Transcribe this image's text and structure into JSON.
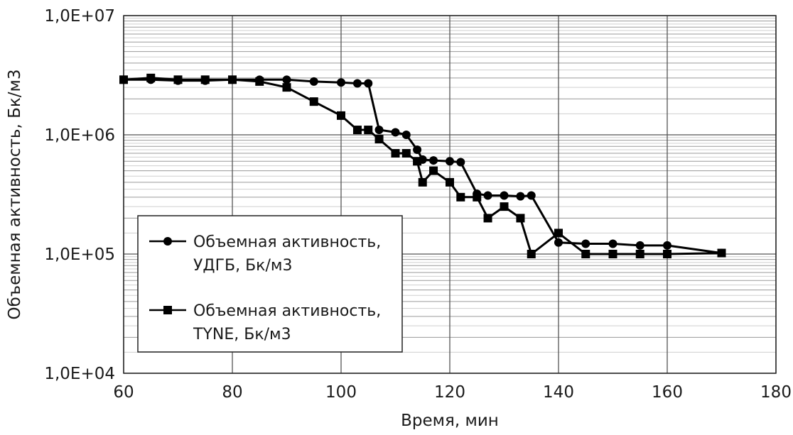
{
  "chart_data": {
    "type": "line",
    "xlabel": "Время, мин",
    "ylabel": "Объемная активность, Бк/м3",
    "xlim": [
      60,
      180
    ],
    "ylim": [
      10000,
      10000000
    ],
    "yscale": "log",
    "grid": true,
    "legend_position": "lower-left",
    "x_ticks": [
      "60",
      "80",
      "100",
      "120",
      "140",
      "160",
      "180"
    ],
    "y_ticks": [
      "1,0E+04",
      "1,0E+05",
      "1,0E+06",
      "1,0E+07"
    ],
    "series": [
      {
        "name_lines": [
          "Объемная активность,",
          "УДГБ, Бк/м3"
        ],
        "marker": "circle",
        "color": "#000000",
        "x": [
          60,
          65,
          70,
          75,
          80,
          85,
          90,
          95,
          100,
          103,
          105,
          107,
          110,
          112,
          114,
          115,
          117,
          120,
          122,
          125,
          127,
          130,
          133,
          135,
          140,
          145,
          150,
          155,
          160,
          170
        ],
        "y": [
          2900000,
          2900000,
          2850000,
          2850000,
          2900000,
          2900000,
          2900000,
          2800000,
          2750000,
          2700000,
          2700000,
          1100000,
          1050000,
          1000000,
          750000,
          620000,
          610000,
          600000,
          590000,
          320000,
          310000,
          310000,
          305000,
          310000,
          125000,
          122000,
          122000,
          118000,
          118000,
          102000
        ]
      },
      {
        "name_lines": [
          "Объемная активность,",
          "TYNE, Бк/м3"
        ],
        "marker": "square",
        "color": "#000000",
        "x": [
          60,
          65,
          70,
          75,
          80,
          85,
          90,
          95,
          100,
          103,
          105,
          107,
          110,
          112,
          114,
          115,
          117,
          120,
          122,
          125,
          127,
          130,
          133,
          135,
          140,
          145,
          150,
          155,
          160,
          170
        ],
        "y": [
          2900000,
          3000000,
          2900000,
          2900000,
          2900000,
          2800000,
          2500000,
          1900000,
          1450000,
          1100000,
          1100000,
          920000,
          700000,
          700000,
          600000,
          400000,
          500000,
          400000,
          300000,
          300000,
          200000,
          250000,
          200000,
          100000,
          150000,
          100000,
          100000,
          100000,
          100000,
          102000
        ]
      }
    ]
  }
}
